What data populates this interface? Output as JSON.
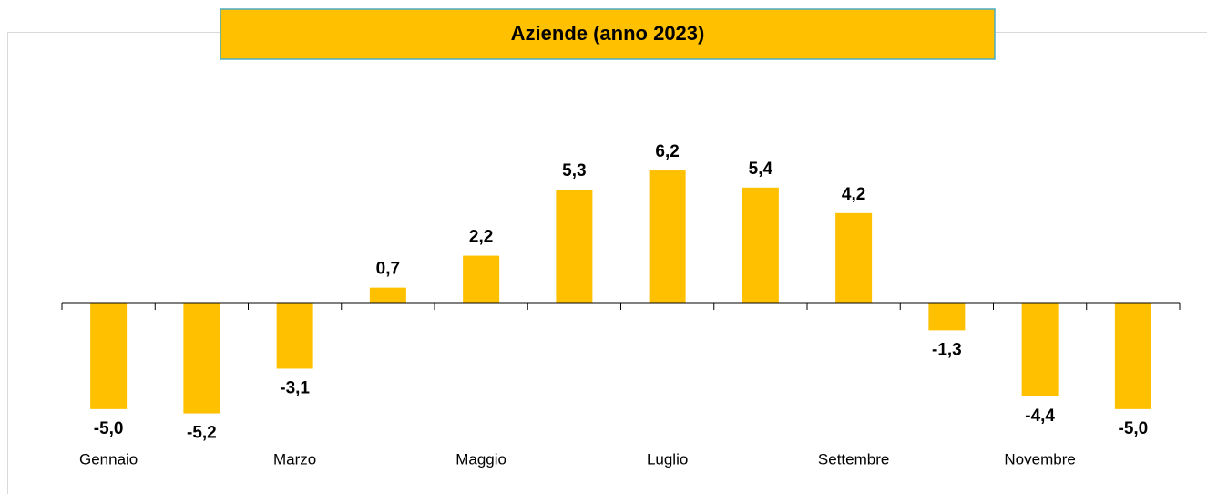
{
  "chart_data": {
    "type": "bar",
    "title": "Aziende (anno 2023)",
    "categories": [
      "Gennaio",
      null,
      "Marzo",
      null,
      "Maggio",
      null,
      "Luglio",
      null,
      "Settembre",
      null,
      "Novembre",
      null
    ],
    "values": [
      -5.0,
      -5.2,
      -3.1,
      0.7,
      2.2,
      5.3,
      6.2,
      5.4,
      4.2,
      -1.3,
      -4.4,
      -5.0
    ],
    "value_labels": [
      "-5,0",
      "-5,2",
      "-3,1",
      "0,7",
      "2,2",
      "5,3",
      "6,2",
      "5,4",
      "4,2",
      "-1,3",
      "-4,4",
      "-5,0"
    ],
    "color": "#ffc000",
    "ylim": [
      -8,
      8
    ]
  }
}
